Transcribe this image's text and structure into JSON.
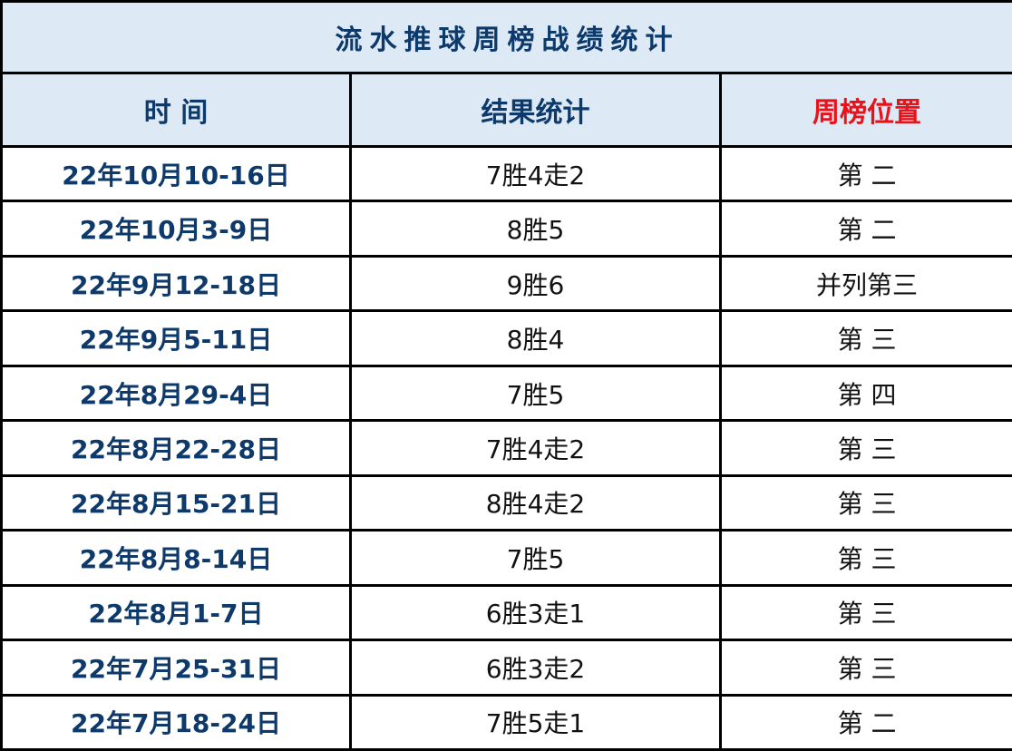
{
  "title": "流水推球周榜战绩统计",
  "headers": [
    "时 间",
    "结果统计",
    "周榜位置"
  ],
  "colors": {
    "header_bg": "#dde9f5",
    "header_text": "#0d3a6a",
    "position_header": "#e8121a"
  },
  "rows": [
    {
      "date": "22年10月10-16日",
      "result": "7胜4走2",
      "rank": "第 二"
    },
    {
      "date": "22年10月3-9日",
      "result": "8胜5",
      "rank": "第 二"
    },
    {
      "date": "22年9月12-18日",
      "result": "9胜6",
      "rank": "并列第三"
    },
    {
      "date": "22年9月5-11日",
      "result": "8胜4",
      "rank": "第 三"
    },
    {
      "date": "22年8月29-4日",
      "result": "7胜5",
      "rank": "第 四"
    },
    {
      "date": "22年8月22-28日",
      "result": "7胜4走2",
      "rank": "第 三"
    },
    {
      "date": "22年8月15-21日",
      "result": "8胜4走2",
      "rank": "第 三"
    },
    {
      "date": "22年8月8-14日",
      "result": "7胜5",
      "rank": "第 三"
    },
    {
      "date": "22年8月1-7日",
      "result": "6胜3走1",
      "rank": "第 三"
    },
    {
      "date": "22年7月25-31日",
      "result": "6胜3走2",
      "rank": "第 三"
    },
    {
      "date": "22年7月18-24日",
      "result": "7胜5走1",
      "rank": "第 二"
    }
  ]
}
